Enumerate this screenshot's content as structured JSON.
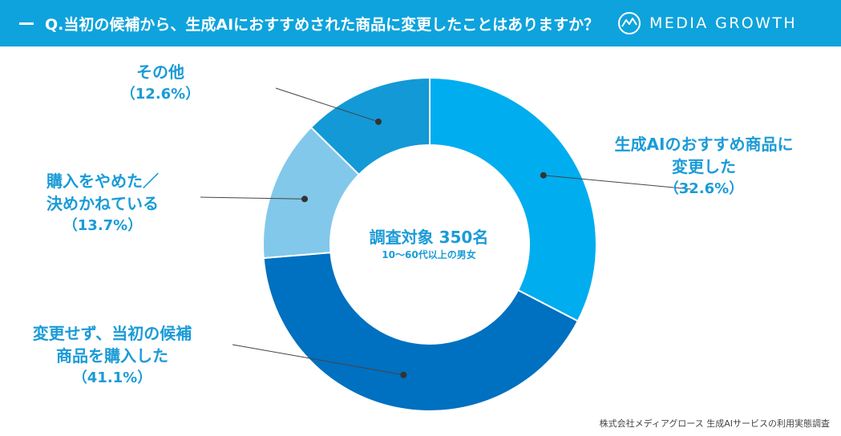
{
  "header": {
    "question": "Q.当初の候補から、生成AIにおすすめされた商品に変更したことはありますか？",
    "brand": "MEDIA GROWTH",
    "brand_logo_icon": "mountain-circle-logo-icon"
  },
  "colors": {
    "banner": "#0ea3dc",
    "label_text": "#1a9bd7"
  },
  "chart_data": {
    "type": "pie",
    "donut": true,
    "segments": [
      {
        "label_line1": "生成AIのおすすめ商品に",
        "label_line2": "変更した",
        "pct_label": "（32.6%）",
        "value": 32.6,
        "color": "#00adef"
      },
      {
        "label_line1": "変更せず、当初の候補",
        "label_line2": "商品を購入した",
        "pct_label": "（41.1%）",
        "value": 41.1,
        "color": "#0070c0"
      },
      {
        "label_line1": "購入をやめた／",
        "label_line2": "決めかねている",
        "pct_label": "（13.7%）",
        "value": 13.7,
        "color": "#82c8ea"
      },
      {
        "label_line1": "その他",
        "label_line2": "",
        "pct_label": "（12.6%）",
        "value": 12.6,
        "color": "#1399d6"
      }
    ],
    "center_title": "調査対象 350名",
    "center_subtitle": "10〜60代以上の男女"
  },
  "footer": {
    "source": "株式会社メディアグロース 生成AIサービスの利用実態調査"
  }
}
